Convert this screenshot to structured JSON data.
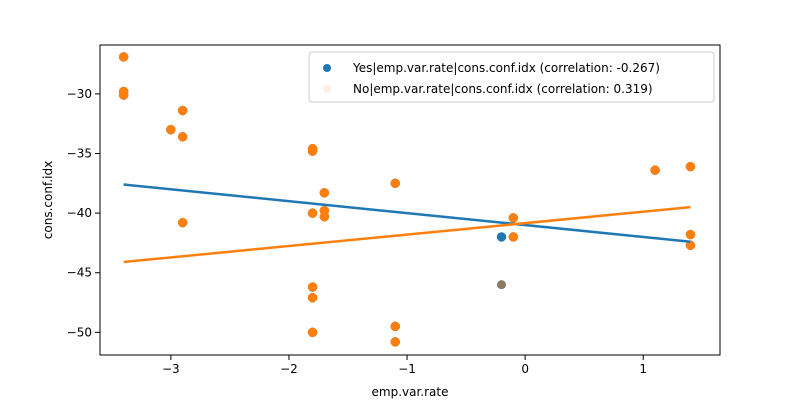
{
  "chart_data": {
    "type": "scatter",
    "xlabel": "emp.var.rate",
    "ylabel": "cons.conf.idx",
    "xlim": [
      -3.6,
      1.65
    ],
    "ylim": [
      -51.9,
      -25.9
    ],
    "x_ticks": [
      -3,
      -2,
      -1,
      0,
      1
    ],
    "x_tick_labels": [
      "−3",
      "−2",
      "−1",
      "0",
      "1"
    ],
    "y_ticks": [
      -50,
      -45,
      -40,
      -35,
      -30
    ],
    "y_tick_labels": [
      "−50",
      "−45",
      "−40",
      "−35",
      "−30"
    ],
    "grid": false,
    "legend_placement": "top-right",
    "series": [
      {
        "name": "Yes|emp.var.rate|cons.conf.idx (correlation: -0.267)",
        "color": "#1f77b4",
        "points": [
          [
            -3.4,
            -26.9
          ],
          [
            -3.4,
            -29.8
          ],
          [
            -3.4,
            -30.1
          ],
          [
            -3.0,
            -33.0
          ],
          [
            -2.9,
            -31.4
          ],
          [
            -2.9,
            -33.6
          ],
          [
            -2.9,
            -40.8
          ],
          [
            -1.8,
            -34.6
          ],
          [
            -1.8,
            -34.8
          ],
          [
            -1.8,
            -40.0
          ],
          [
            -1.8,
            -46.2
          ],
          [
            -1.8,
            -47.1
          ],
          [
            -1.8,
            -50.0
          ],
          [
            -1.7,
            -38.3
          ],
          [
            -1.7,
            -39.8
          ],
          [
            -1.7,
            -40.3
          ],
          [
            -1.1,
            -37.5
          ],
          [
            -1.1,
            -49.5
          ],
          [
            -1.1,
            -50.8
          ],
          [
            -0.2,
            -42.0
          ],
          [
            -0.1,
            -40.4
          ],
          [
            -0.1,
            -42.0
          ],
          [
            1.1,
            -36.4
          ],
          [
            1.4,
            -36.1
          ],
          [
            1.4,
            -41.8
          ],
          [
            1.4,
            -42.7
          ]
        ],
        "fit_line": [
          [
            -3.4,
            -37.6
          ],
          [
            1.4,
            -42.4
          ]
        ]
      },
      {
        "name": "No|emp.var.rate|cons.conf.idx (correlation: 0.319)",
        "color": "#ff7f0e",
        "points": [
          [
            -3.4,
            -26.9
          ],
          [
            -3.4,
            -29.8
          ],
          [
            -3.4,
            -30.1
          ],
          [
            -3.0,
            -33.0
          ],
          [
            -2.9,
            -31.4
          ],
          [
            -2.9,
            -33.6
          ],
          [
            -2.9,
            -40.8
          ],
          [
            -1.8,
            -34.6
          ],
          [
            -1.8,
            -34.8
          ],
          [
            -1.8,
            -40.0
          ],
          [
            -1.8,
            -46.2
          ],
          [
            -1.8,
            -47.1
          ],
          [
            -1.8,
            -50.0
          ],
          [
            -1.7,
            -38.3
          ],
          [
            -1.7,
            -39.8
          ],
          [
            -1.7,
            -40.3
          ],
          [
            -1.1,
            -37.5
          ],
          [
            -1.1,
            -49.5
          ],
          [
            -1.1,
            -50.8
          ],
          [
            -0.1,
            -40.4
          ],
          [
            -0.1,
            -42.0
          ],
          [
            1.1,
            -36.4
          ],
          [
            1.4,
            -36.1
          ],
          [
            1.4,
            -41.8
          ],
          [
            1.4,
            -42.7
          ]
        ],
        "fit_line": [
          [
            -3.4,
            -44.1
          ],
          [
            1.4,
            -39.5
          ]
        ]
      }
    ],
    "overlap_points": [
      {
        "x": -0.2,
        "y": -46.0,
        "color": "#8c7a66"
      }
    ]
  }
}
